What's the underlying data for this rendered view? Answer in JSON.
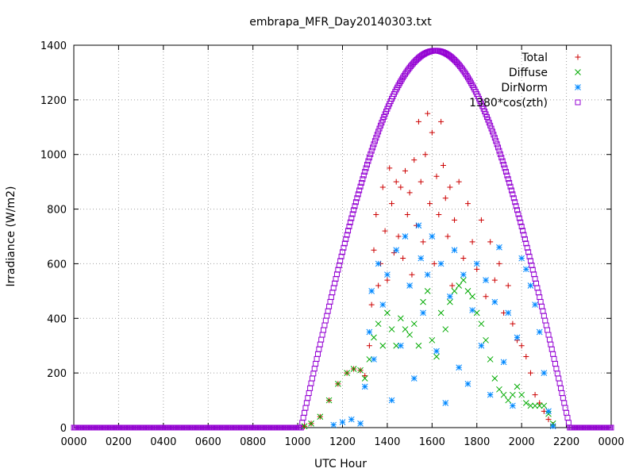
{
  "chart_data": {
    "type": "scatter",
    "title": "embrapa_MFR_Day20140303.txt",
    "xlabel": "UTC Hour",
    "ylabel": "Irradiance (W/m2)",
    "xlim": [
      0,
      24
    ],
    "ylim": [
      0,
      1400
    ],
    "xtick_labels": [
      "0000",
      "0200",
      "0400",
      "0600",
      "0800",
      "1000",
      "1200",
      "1400",
      "1600",
      "1800",
      "2000",
      "2200",
      "0000"
    ],
    "ytick_labels": [
      "0",
      "200",
      "400",
      "600",
      "800",
      "1000",
      "1200",
      "1400"
    ],
    "grid": true,
    "legend_position": "top-right",
    "series": [
      {
        "name": "Total",
        "marker": "+",
        "color": "#cc0000",
        "points": [
          [
            10.3,
            5
          ],
          [
            10.6,
            15
          ],
          [
            11.0,
            40
          ],
          [
            11.4,
            100
          ],
          [
            11.8,
            160
          ],
          [
            12.2,
            200
          ],
          [
            12.5,
            215
          ],
          [
            12.8,
            210
          ],
          [
            13.0,
            190
          ],
          [
            13.2,
            300
          ],
          [
            13.3,
            450
          ],
          [
            13.4,
            650
          ],
          [
            13.5,
            780
          ],
          [
            13.6,
            520
          ],
          [
            13.7,
            600
          ],
          [
            13.8,
            880
          ],
          [
            13.9,
            720
          ],
          [
            14.0,
            540
          ],
          [
            14.1,
            950
          ],
          [
            14.2,
            820
          ],
          [
            14.3,
            640
          ],
          [
            14.4,
            900
          ],
          [
            14.5,
            700
          ],
          [
            14.6,
            880
          ],
          [
            14.7,
            620
          ],
          [
            14.8,
            940
          ],
          [
            14.9,
            780
          ],
          [
            15.0,
            860
          ],
          [
            15.1,
            560
          ],
          [
            15.2,
            980
          ],
          [
            15.3,
            740
          ],
          [
            15.4,
            1120
          ],
          [
            15.5,
            900
          ],
          [
            15.6,
            680
          ],
          [
            15.7,
            1000
          ],
          [
            15.8,
            1150
          ],
          [
            15.9,
            820
          ],
          [
            16.0,
            1080
          ],
          [
            16.1,
            600
          ],
          [
            16.2,
            920
          ],
          [
            16.3,
            780
          ],
          [
            16.4,
            1120
          ],
          [
            16.5,
            960
          ],
          [
            16.6,
            840
          ],
          [
            16.7,
            700
          ],
          [
            16.8,
            880
          ],
          [
            16.9,
            520
          ],
          [
            17.0,
            760
          ],
          [
            17.2,
            900
          ],
          [
            17.4,
            620
          ],
          [
            17.6,
            820
          ],
          [
            17.8,
            680
          ],
          [
            18.0,
            580
          ],
          [
            18.2,
            760
          ],
          [
            18.4,
            480
          ],
          [
            18.6,
            680
          ],
          [
            18.8,
            540
          ],
          [
            19.0,
            600
          ],
          [
            19.2,
            420
          ],
          [
            19.4,
            520
          ],
          [
            19.6,
            380
          ],
          [
            19.8,
            320
          ],
          [
            20.0,
            300
          ],
          [
            20.2,
            260
          ],
          [
            20.4,
            200
          ],
          [
            20.6,
            120
          ],
          [
            20.8,
            90
          ],
          [
            21.0,
            60
          ],
          [
            21.2,
            30
          ],
          [
            21.4,
            10
          ]
        ]
      },
      {
        "name": "Diffuse",
        "marker": "x",
        "color": "#00aa00",
        "points": [
          [
            10.3,
            5
          ],
          [
            10.6,
            15
          ],
          [
            11.0,
            40
          ],
          [
            11.4,
            100
          ],
          [
            11.8,
            160
          ],
          [
            12.2,
            200
          ],
          [
            12.5,
            215
          ],
          [
            12.8,
            210
          ],
          [
            13.0,
            180
          ],
          [
            13.2,
            250
          ],
          [
            13.4,
            330
          ],
          [
            13.6,
            380
          ],
          [
            13.8,
            300
          ],
          [
            14.0,
            420
          ],
          [
            14.2,
            360
          ],
          [
            14.4,
            300
          ],
          [
            14.6,
            400
          ],
          [
            14.8,
            360
          ],
          [
            15.0,
            340
          ],
          [
            15.2,
            380
          ],
          [
            15.4,
            300
          ],
          [
            15.6,
            460
          ],
          [
            15.8,
            500
          ],
          [
            16.0,
            320
          ],
          [
            16.2,
            260
          ],
          [
            16.4,
            420
          ],
          [
            16.6,
            360
          ],
          [
            16.8,
            460
          ],
          [
            17.0,
            500
          ],
          [
            17.2,
            520
          ],
          [
            17.4,
            540
          ],
          [
            17.6,
            500
          ],
          [
            17.8,
            480
          ],
          [
            18.0,
            420
          ],
          [
            18.2,
            380
          ],
          [
            18.4,
            320
          ],
          [
            18.6,
            250
          ],
          [
            18.8,
            180
          ],
          [
            19.0,
            140
          ],
          [
            19.2,
            120
          ],
          [
            19.4,
            100
          ],
          [
            19.6,
            120
          ],
          [
            19.8,
            150
          ],
          [
            20.0,
            120
          ],
          [
            20.2,
            90
          ],
          [
            20.4,
            80
          ],
          [
            20.6,
            80
          ],
          [
            20.8,
            80
          ],
          [
            21.0,
            80
          ],
          [
            21.2,
            50
          ],
          [
            21.4,
            15
          ]
        ]
      },
      {
        "name": "DirNorm",
        "marker": "*",
        "color": "#0088ff",
        "points": [
          [
            11.6,
            10
          ],
          [
            12.0,
            20
          ],
          [
            12.4,
            30
          ],
          [
            12.8,
            15
          ],
          [
            13.0,
            150
          ],
          [
            13.2,
            350
          ],
          [
            13.3,
            500
          ],
          [
            13.4,
            250
          ],
          [
            13.6,
            600
          ],
          [
            13.8,
            450
          ],
          [
            14.0,
            560
          ],
          [
            14.2,
            100
          ],
          [
            14.4,
            650
          ],
          [
            14.6,
            300
          ],
          [
            14.8,
            700
          ],
          [
            15.0,
            520
          ],
          [
            15.2,
            180
          ],
          [
            15.4,
            740
          ],
          [
            15.5,
            620
          ],
          [
            15.6,
            420
          ],
          [
            15.8,
            560
          ],
          [
            16.0,
            700
          ],
          [
            16.2,
            280
          ],
          [
            16.4,
            600
          ],
          [
            16.6,
            90
          ],
          [
            16.8,
            480
          ],
          [
            17.0,
            650
          ],
          [
            17.2,
            220
          ],
          [
            17.4,
            560
          ],
          [
            17.6,
            160
          ],
          [
            17.8,
            430
          ],
          [
            18.0,
            600
          ],
          [
            18.2,
            300
          ],
          [
            18.4,
            540
          ],
          [
            18.6,
            120
          ],
          [
            18.8,
            460
          ],
          [
            19.0,
            660
          ],
          [
            19.2,
            240
          ],
          [
            19.4,
            420
          ],
          [
            19.6,
            80
          ],
          [
            19.8,
            330
          ],
          [
            20.0,
            620
          ],
          [
            20.2,
            580
          ],
          [
            20.4,
            520
          ],
          [
            20.6,
            450
          ],
          [
            20.8,
            350
          ],
          [
            21.0,
            200
          ],
          [
            21.2,
            60
          ],
          [
            21.4,
            5
          ]
        ]
      },
      {
        "name": "1380*cos(zth)",
        "marker": "square",
        "color": "#9400d3",
        "scale": 1380,
        "sunrise_hour": 10.15,
        "sunset_hour": 22.15
      }
    ]
  }
}
